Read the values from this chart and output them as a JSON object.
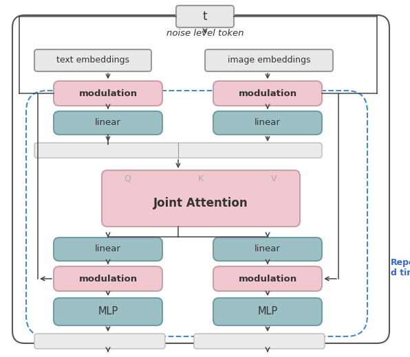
{
  "title": "noise level token",
  "t_label": "t",
  "repeat_label": "Repeat\nd times",
  "colors": {
    "pink_box": "#f2c8d0",
    "pink_box_edge": "#c8a0aa",
    "teal_box": "#9dc0c4",
    "teal_box_edge": "#6e9ea3",
    "gray_box_fill": "#e8e8e8",
    "gray_box_edge": "#999999",
    "gray_light_fill": "#ebebeb",
    "gray_light_edge": "#bbbbbb",
    "white_bg": "#ffffff",
    "outer_border": "#555555",
    "dashed_border": "#4488cc",
    "arrow_color": "#444444",
    "text_dark": "#333333",
    "text_blue": "#3366cc",
    "qkv_color": "#aaaaaa"
  },
  "layout": {
    "fig_w": 5.96,
    "fig_h": 5.2,
    "dpi": 100
  }
}
